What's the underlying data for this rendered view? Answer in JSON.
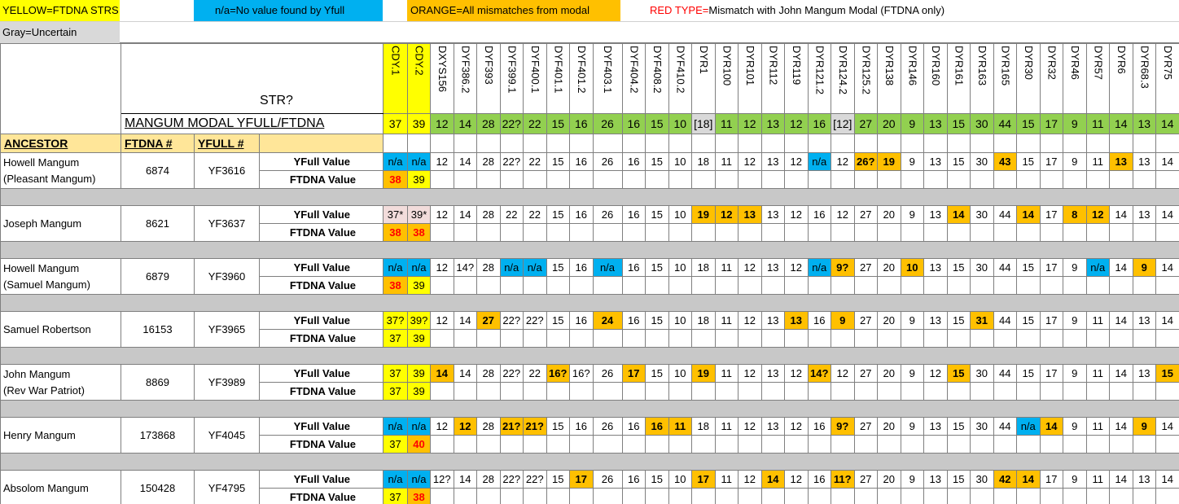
{
  "legend": {
    "yellow": "YELLOW=FTDNA STRS",
    "na": "n/a=No value found by Yfull",
    "orange": "ORANGE=All mismatches from modal",
    "red_key": "RED TYPE=",
    "red_text": "Mismatch with John Mangum Modal (FTDNA only)",
    "gray": "Gray=Uncertain"
  },
  "header": {
    "str": "STR?",
    "modal_label": "MANGUM MODAL YFULL/FTDNA",
    "columns": [
      "ANCESTOR",
      "FTDNA #",
      "YFULL #"
    ],
    "row_labels": [
      "YFull Value",
      "FTDNA Value"
    ]
  },
  "colors": {
    "Y": "#ffff00",
    "B": "#00b0f0",
    "O": "#ffc000",
    "P": "#f2dcdb",
    "G": "#92d050",
    "U": "#d9d9d9",
    "red_text": "#ff0000",
    "header_row": "#ffe699",
    "separator": "#c8c8c8"
  },
  "markers": [
    "CDY.1",
    "CDY.2",
    "DXYS156",
    "DYF386.2",
    "DYF393",
    "DYF399.1",
    "DYF400.1",
    "DYF401.1",
    "DYF401.2",
    "DYF403.1",
    "DYF404.2",
    "DYF408.2",
    "DYF410.2",
    "DYR1",
    "DYR100",
    "DYR101",
    "DYR112",
    "DYR119",
    "DYR121.2",
    "DYR124.2",
    "DYR125.2",
    "DYR138",
    "DYR146",
    "DYR160",
    "DYR161",
    "DYR163",
    "DYR165",
    "DYR30",
    "DYR32",
    "DYR46",
    "DYR57",
    "DYR6",
    "DYR68.3",
    "DYR75"
  ],
  "modal": [
    "37",
    "39",
    "12",
    "14",
    "28",
    "22?",
    "22",
    "15",
    "16",
    "26",
    "16",
    "15",
    "10",
    "[18]",
    "11",
    "12",
    "13",
    "12",
    "16",
    "[12]",
    "27",
    "20",
    "9",
    "13",
    "15",
    "30",
    "44",
    "15",
    "17",
    "9",
    "11",
    "14",
    "13",
    "14"
  ],
  "modal_fills": "YYGGGGGGGGGGGUGGGGGUGGGGGGGGGGGGGG",
  "ancestors": [
    {
      "name": "Howell Mangum",
      "note": "(Pleasant Mangum)",
      "ftdna": "6874",
      "yfull": "YF3616",
      "yfull_values": [
        "n/a",
        "n/a",
        "12",
        "14",
        "28",
        "22?",
        "22",
        "15",
        "16",
        "26",
        "16",
        "15",
        "10",
        "18",
        "11",
        "12",
        "13",
        "12",
        "n/a",
        "12",
        "26?",
        "19",
        "9",
        "13",
        "15",
        "30",
        "43",
        "15",
        "17",
        "9",
        "11",
        "13",
        "13",
        "14"
      ],
      "yfull_fills": "BB----------------B-OO----O----O--",
      "ftdna_values": [
        "38",
        "39"
      ],
      "ftdna_fills": "OY"
    },
    {
      "name": "Joseph Mangum",
      "note": "",
      "ftdna": "8621",
      "yfull": "YF3637",
      "yfull_values": [
        "37*",
        "39*",
        "12",
        "14",
        "28",
        "22",
        "22",
        "15",
        "16",
        "26",
        "16",
        "15",
        "10",
        "19",
        "12",
        "13",
        "13",
        "12",
        "16",
        "12",
        "27",
        "20",
        "9",
        "13",
        "14",
        "30",
        "44",
        "14",
        "17",
        "8",
        "12",
        "14",
        "13",
        "14"
      ],
      "yfull_fills": "PP-----------OOO--------O--O-OO---",
      "ftdna_values": [
        "38",
        "38"
      ],
      "ftdna_fills": "OO"
    },
    {
      "name": "Howell Mangum",
      "note": "(Samuel Mangum)",
      "ftdna": "6879",
      "yfull": "YF3960",
      "yfull_values": [
        "n/a",
        "n/a",
        "12",
        "14?",
        "28",
        "n/a",
        "n/a",
        "15",
        "16",
        "n/a",
        "16",
        "15",
        "10",
        "18",
        "11",
        "12",
        "13",
        "12",
        "n/a",
        "9?",
        "27",
        "20",
        "10",
        "13",
        "15",
        "30",
        "44",
        "15",
        "17",
        "9",
        "n/a",
        "14",
        "9",
        "14"
      ],
      "yfull_fills": "BB---BB--B--------BO--O-------B-O-",
      "ftdna_values": [
        "38",
        "39"
      ],
      "ftdna_fills": "OY"
    },
    {
      "name": "Samuel Robertson",
      "note": "",
      "ftdna": "16153",
      "yfull": "YF3965",
      "yfull_values": [
        "37?",
        "39?",
        "12",
        "14",
        "27",
        "22?",
        "22?",
        "15",
        "16",
        "24",
        "16",
        "15",
        "10",
        "18",
        "11",
        "12",
        "13",
        "13",
        "16",
        "9",
        "27",
        "20",
        "9",
        "13",
        "15",
        "31",
        "44",
        "15",
        "17",
        "9",
        "11",
        "14",
        "13",
        "14"
      ],
      "yfull_fills": "YY--O----O-------O-O-----O--------",
      "ftdna_values": [
        "37",
        "39"
      ],
      "ftdna_fills": "YY"
    },
    {
      "name": "John Mangum",
      "note": "(Rev War Patriot)",
      "ftdna": "8869",
      "yfull": "YF3989",
      "yfull_values": [
        "37",
        "39",
        "14",
        "14",
        "28",
        "22?",
        "22",
        "16?",
        "16?",
        "26",
        "17",
        "15",
        "10",
        "19",
        "11",
        "12",
        "13",
        "12",
        "14?",
        "12",
        "27",
        "20",
        "9",
        "12",
        "15",
        "30",
        "44",
        "15",
        "17",
        "9",
        "11",
        "14",
        "13",
        "15"
      ],
      "yfull_fills": "YYO----O--O--O----O-----O--------O",
      "ftdna_values": [
        "37",
        "39"
      ],
      "ftdna_fills": "YY"
    },
    {
      "name": "Henry Mangum",
      "note": "",
      "ftdna": "173868",
      "yfull": "YF4045",
      "yfull_values": [
        "n/a",
        "n/a",
        "12",
        "12",
        "28",
        "21?",
        "21?",
        "15",
        "16",
        "26",
        "16",
        "16",
        "11",
        "18",
        "11",
        "12",
        "13",
        "12",
        "16",
        "9?",
        "27",
        "20",
        "9",
        "13",
        "15",
        "30",
        "44",
        "n/a",
        "14",
        "9",
        "11",
        "14",
        "9",
        "14"
      ],
      "yfull_fills": "BB-O-OO----OO------O-------BO---O-",
      "ftdna_values": [
        "37",
        "40"
      ],
      "ftdna_fills": "YO"
    },
    {
      "name": "Absolom Mangum",
      "note": "",
      "ftdna": "150428",
      "yfull": "YF4795",
      "yfull_values": [
        "n/a",
        "n/a",
        "12?",
        "14",
        "28",
        "22?",
        "22?",
        "15",
        "17",
        "26",
        "16",
        "15",
        "10",
        "17",
        "11",
        "12",
        "14",
        "12",
        "16",
        "11?",
        "27",
        "20",
        "9",
        "13",
        "15",
        "30",
        "42",
        "14",
        "17",
        "9",
        "11",
        "14",
        "13",
        "14"
      ],
      "yfull_fills": "BB------O----O--O--O------OO------",
      "ftdna_values": [
        "37",
        "38"
      ],
      "ftdna_fills": "YO"
    }
  ]
}
